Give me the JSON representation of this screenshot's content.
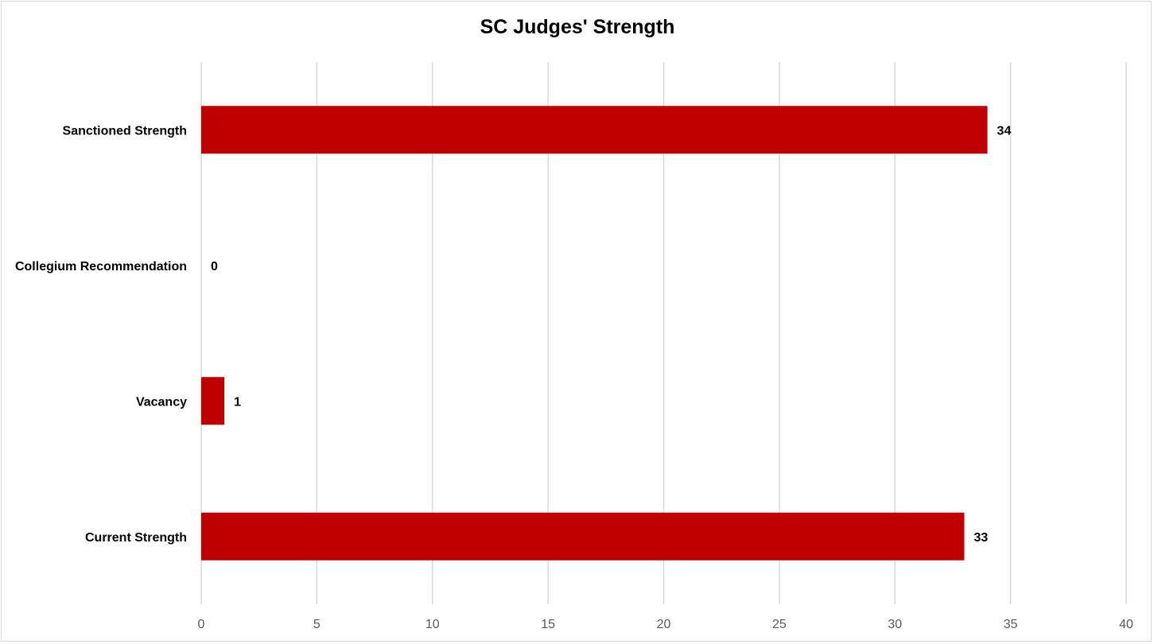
{
  "chart_data": {
    "type": "bar",
    "orientation": "horizontal",
    "title": "SC Judges' Strength",
    "categories": [
      "Sanctioned Strength",
      "Collegium Recommendation",
      "Vacancy",
      "Current Strength"
    ],
    "values": [
      34,
      0,
      1,
      33
    ],
    "data_labels": [
      "34",
      "0",
      "1",
      "33"
    ],
    "xlim": [
      0,
      40
    ],
    "x_ticks": [
      "0",
      "5",
      "10",
      "15",
      "20",
      "25",
      "30",
      "35",
      "40"
    ],
    "grid": "vertical",
    "legend": "none",
    "bar_color": "#C00000",
    "grid_color": "#D9D9D9"
  }
}
